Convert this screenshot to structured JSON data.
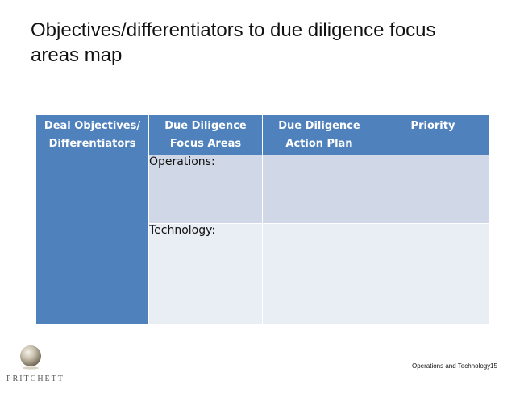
{
  "slide": {
    "title": "Objectives/differentiators to due diligence focus areas map"
  },
  "table": {
    "headers": [
      [
        "Deal Objectives/",
        "Differentiators"
      ],
      [
        "Due Diligence",
        "Focus Areas"
      ],
      [
        "Due Diligence",
        "Action Plan"
      ],
      [
        "Priority"
      ]
    ],
    "rows": [
      {
        "focus_area": "Operations:"
      },
      {
        "focus_area": "Technology:"
      }
    ],
    "colors": {
      "header": "#4f81bd",
      "band_dark": "#d0d8e8",
      "band_light": "#e9edf4"
    }
  },
  "footer": {
    "logo_text": "PRITCHETT",
    "section": "Operations and Technology",
    "page": "15"
  },
  "colors": {
    "rule": "#3a8fd0"
  }
}
